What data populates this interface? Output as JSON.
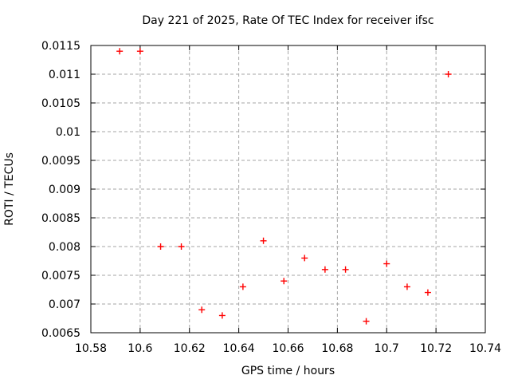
{
  "chart_data": {
    "type": "scatter",
    "title": "Day 221 of 2025, Rate Of TEC Index for receiver ifsc",
    "xlabel": "GPS time / hours",
    "ylabel": "ROTI / TECUs",
    "xlim": [
      10.58,
      10.74
    ],
    "ylim": [
      0.0065,
      0.0115
    ],
    "xticks": [
      10.58,
      10.6,
      10.62,
      10.64,
      10.66,
      10.68,
      10.7,
      10.72,
      10.74
    ],
    "xtick_labels": [
      "10.58",
      "10.6",
      "10.62",
      "10.64",
      "10.66",
      "10.68",
      "10.7",
      "10.72",
      "10.74"
    ],
    "yticks": [
      0.0065,
      0.007,
      0.0075,
      0.008,
      0.0085,
      0.009,
      0.0095,
      0.01,
      0.0105,
      0.011,
      0.0115
    ],
    "ytick_labels": [
      "0.0065",
      "0.007",
      "0.0075",
      "0.008",
      "0.0085",
      "0.009",
      "0.0095",
      "0.01",
      "0.0105",
      "0.011",
      "0.0115"
    ],
    "grid": true,
    "legend": "none",
    "marker": "plus",
    "marker_color": "#ff0000",
    "grid_color": "#a6a6a6",
    "series": [
      {
        "name": "ROTI",
        "points": [
          {
            "x": 10.5917,
            "y": 0.0114
          },
          {
            "x": 10.6,
            "y": 0.0114
          },
          {
            "x": 10.6083,
            "y": 0.008
          },
          {
            "x": 10.6167,
            "y": 0.008
          },
          {
            "x": 10.625,
            "y": 0.0069
          },
          {
            "x": 10.6333,
            "y": 0.0068
          },
          {
            "x": 10.6417,
            "y": 0.0073
          },
          {
            "x": 10.65,
            "y": 0.0081
          },
          {
            "x": 10.6583,
            "y": 0.0074
          },
          {
            "x": 10.6667,
            "y": 0.0078
          },
          {
            "x": 10.675,
            "y": 0.0076
          },
          {
            "x": 10.6833,
            "y": 0.0076
          },
          {
            "x": 10.6917,
            "y": 0.0067
          },
          {
            "x": 10.7,
            "y": 0.0077
          },
          {
            "x": 10.7083,
            "y": 0.0073
          },
          {
            "x": 10.7167,
            "y": 0.0072
          },
          {
            "x": 10.725,
            "y": 0.011
          }
        ]
      }
    ]
  }
}
